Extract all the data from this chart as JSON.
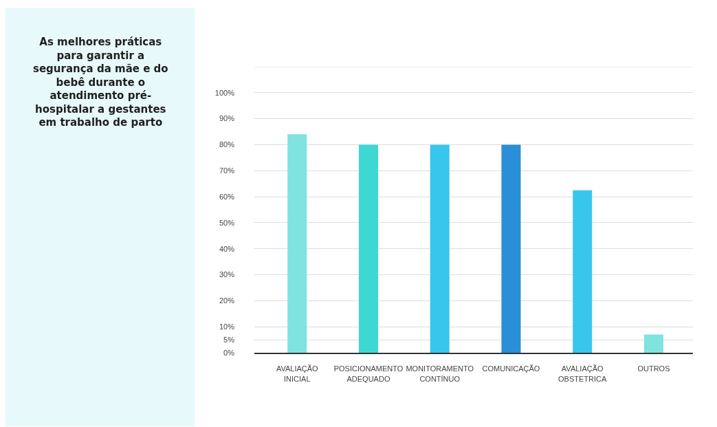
{
  "chart_data": {
    "type": "bar",
    "title": "As melhores práticas para garantir a segurança da mãe e do bebê durante o atendimento pré-hospitalar a gestantes em trabalho de parto",
    "categories": [
      "AVALIAÇÃO INICIAL",
      "POSICIONAMENTO ADEQUADO",
      "MONITORAMENTO CONTÍNUO",
      "COMUNICAÇÃO",
      "AVALIAÇÃO OBSTETRICA",
      "OUTROS"
    ],
    "values": [
      84,
      80,
      80,
      80,
      62.5,
      7
    ],
    "colors": [
      "#7fe3e0",
      "#3dd8d2",
      "#38c6ec",
      "#2a8fd6",
      "#38c6ec",
      "#7fe3e0"
    ],
    "ylim": [
      0,
      110
    ],
    "yticks": [
      {
        "value": 0,
        "label": "0%"
      },
      {
        "value": 5,
        "label": "5%"
      },
      {
        "value": 10,
        "label": "10%"
      },
      {
        "value": 20,
        "label": "20%"
      },
      {
        "value": 30,
        "label": "30%"
      },
      {
        "value": 40,
        "label": "40%"
      },
      {
        "value": 50,
        "label": "50%"
      },
      {
        "value": 60,
        "label": "60%"
      },
      {
        "value": 70,
        "label": "70%"
      },
      {
        "value": 80,
        "label": "80%"
      },
      {
        "value": 90,
        "label": "90%"
      },
      {
        "value": 100,
        "label": "100%"
      },
      {
        "value": 110,
        "label": null
      }
    ],
    "grid": "y"
  }
}
